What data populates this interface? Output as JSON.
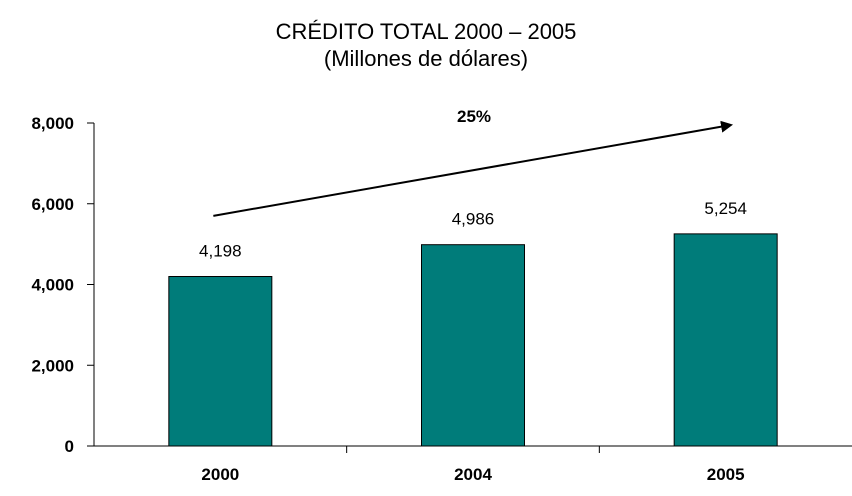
{
  "chart_data": {
    "type": "bar",
    "title": "CRÉDITO TOTAL 2000 – 2005",
    "subtitle": "(Millones de dólares)",
    "categories": [
      "2000",
      "2004",
      "2005"
    ],
    "values": [
      4198,
      4986,
      5254
    ],
    "value_labels": [
      "4,198",
      "4,986",
      "5,254"
    ],
    "y_ticks": [
      0,
      2000,
      4000,
      6000,
      8000
    ],
    "y_tick_labels": [
      "0",
      "2,000",
      "4,000",
      "6,000",
      "8,000"
    ],
    "ylim": [
      0,
      8000
    ],
    "bar_color": "#007c7a",
    "grid": false,
    "annotation": {
      "label": "25%",
      "arrow_from": {
        "x": "2000",
        "y": 5700
      },
      "arrow_to": {
        "x": "2005",
        "y": 7950
      }
    }
  }
}
